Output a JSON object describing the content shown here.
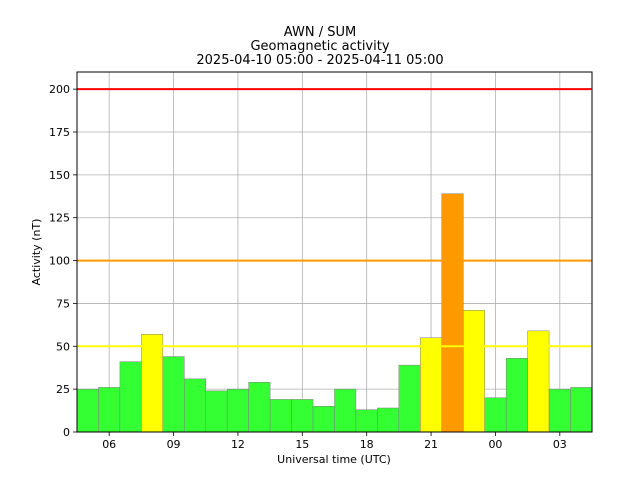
{
  "chart_data": {
    "type": "bar",
    "title_lines": [
      "AWN / SUM",
      "Geomagnetic activity",
      "2025-04-10 05:00 - 2025-04-11 05:00"
    ],
    "xlabel": "Universal time (UTC)",
    "ylabel": "Activity (nT)",
    "ylim": [
      0,
      210
    ],
    "y_ticks": [
      0,
      25,
      50,
      75,
      100,
      125,
      150,
      175,
      200
    ],
    "x_range_hours": [
      5,
      29
    ],
    "x_ticks": [
      {
        "hour": 6,
        "label": "06"
      },
      {
        "hour": 9,
        "label": "09"
      },
      {
        "hour": 12,
        "label": "12"
      },
      {
        "hour": 15,
        "label": "15"
      },
      {
        "hour": 18,
        "label": "18"
      },
      {
        "hour": 21,
        "label": "21"
      },
      {
        "hour": 24,
        "label": "00"
      },
      {
        "hour": 27,
        "label": "03"
      }
    ],
    "grid": true,
    "thresholds": [
      {
        "value": 50,
        "color": "#ffff00"
      },
      {
        "value": 100,
        "color": "#ff9900"
      },
      {
        "value": 200,
        "color": "#ff0000"
      }
    ],
    "bar_colors": {
      "green": "#33ff33",
      "yellow": "#ffff00",
      "orange": "#ff9900"
    },
    "bars": [
      {
        "hour": 5,
        "value": 25,
        "color": "green"
      },
      {
        "hour": 6,
        "value": 26,
        "color": "green"
      },
      {
        "hour": 7,
        "value": 41,
        "color": "green"
      },
      {
        "hour": 8,
        "value": 57,
        "color": "yellow"
      },
      {
        "hour": 9,
        "value": 44,
        "color": "green"
      },
      {
        "hour": 10,
        "value": 31,
        "color": "green"
      },
      {
        "hour": 11,
        "value": 24,
        "color": "green"
      },
      {
        "hour": 12,
        "value": 25,
        "color": "green"
      },
      {
        "hour": 13,
        "value": 29,
        "color": "green"
      },
      {
        "hour": 14,
        "value": 19,
        "color": "green"
      },
      {
        "hour": 15,
        "value": 19,
        "color": "green"
      },
      {
        "hour": 16,
        "value": 15,
        "color": "green"
      },
      {
        "hour": 17,
        "value": 25,
        "color": "green"
      },
      {
        "hour": 18,
        "value": 13,
        "color": "green"
      },
      {
        "hour": 19,
        "value": 14,
        "color": "green"
      },
      {
        "hour": 20,
        "value": 39,
        "color": "green"
      },
      {
        "hour": 21,
        "value": 55,
        "color": "yellow"
      },
      {
        "hour": 22,
        "value": 139,
        "color": "orange"
      },
      {
        "hour": 23,
        "value": 71,
        "color": "yellow"
      },
      {
        "hour": 24,
        "value": 20,
        "color": "green"
      },
      {
        "hour": 25,
        "value": 43,
        "color": "green"
      },
      {
        "hour": 26,
        "value": 59,
        "color": "yellow"
      },
      {
        "hour": 27,
        "value": 25,
        "color": "green"
      },
      {
        "hour": 28,
        "value": 26,
        "color": "green"
      }
    ]
  }
}
